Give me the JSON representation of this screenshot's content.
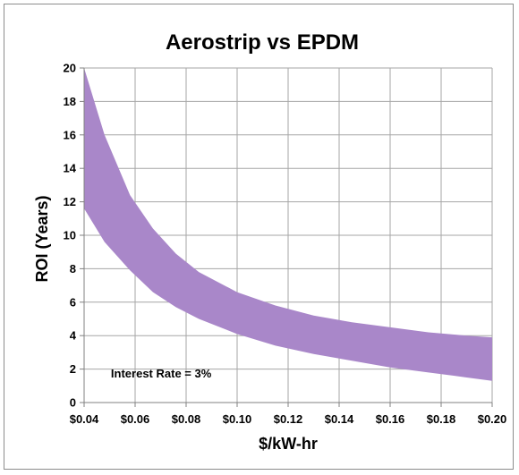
{
  "chart_data": {
    "type": "area",
    "title": "Aerostrip vs EPDM",
    "xlabel": "$/kW-hr",
    "ylabel": "ROI (Years)",
    "xlim": [
      0.04,
      0.2
    ],
    "ylim": [
      0,
      20
    ],
    "x_ticks": [
      0.04,
      0.06,
      0.08,
      0.1,
      0.12,
      0.14,
      0.16,
      0.18,
      0.2
    ],
    "x_tick_labels": [
      "$0.04",
      "$0.06",
      "$0.08",
      "$0.10",
      "$0.12",
      "$0.14",
      "$0.16",
      "$0.18",
      "$0.20"
    ],
    "y_ticks": [
      0,
      2,
      4,
      6,
      8,
      10,
      12,
      14,
      16,
      18,
      20
    ],
    "y_tick_labels": [
      "0",
      "2",
      "4",
      "6",
      "8",
      "10",
      "12",
      "14",
      "16",
      "18",
      "20"
    ],
    "grid": true,
    "band": {
      "x": [
        0.04,
        0.048,
        0.058,
        0.067,
        0.076,
        0.085,
        0.1,
        0.115,
        0.13,
        0.145,
        0.16,
        0.175,
        0.19,
        0.2
      ],
      "upper": [
        20.0,
        16.0,
        12.4,
        10.4,
        8.9,
        7.8,
        6.6,
        5.8,
        5.2,
        4.8,
        4.5,
        4.2,
        4.0,
        3.9
      ],
      "lower": [
        11.6,
        9.6,
        7.9,
        6.6,
        5.7,
        5.0,
        4.1,
        3.4,
        2.9,
        2.5,
        2.1,
        1.8,
        1.5,
        1.3
      ]
    },
    "fill_color": "#a987c9",
    "annotations": [
      {
        "text": "Interest Rate = 3%",
        "x": 0.0505,
        "y": 1.5
      }
    ]
  }
}
